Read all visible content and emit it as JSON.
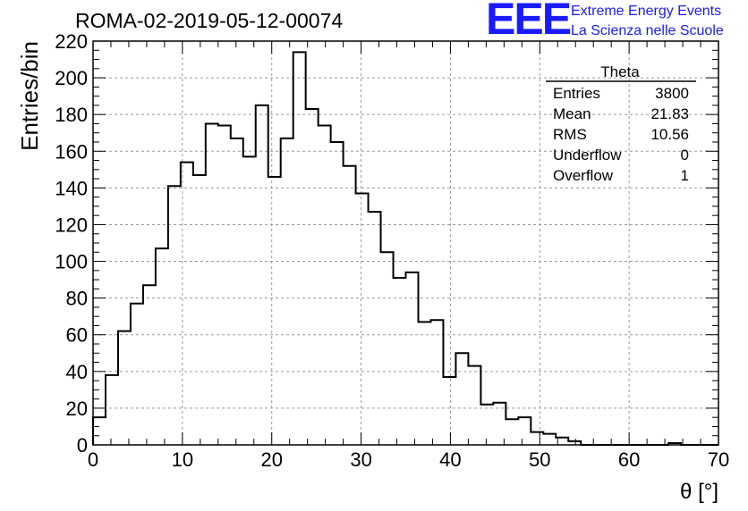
{
  "header": {
    "title": "ROMA-02-2019-05-12-00074",
    "logo_text": "EEE",
    "logo_line1": "Extreme Energy Events",
    "logo_line2": "La Scienza nelle Scuole",
    "logo_color": "#1a1aff"
  },
  "stats": {
    "name": "Theta",
    "rows": [
      {
        "label": "Entries",
        "value": "3800"
      },
      {
        "label": "Mean",
        "value": "21.83"
      },
      {
        "label": "RMS",
        "value": "10.56"
      },
      {
        "label": "Underflow",
        "value": "0"
      },
      {
        "label": "Overflow",
        "value": "1"
      }
    ]
  },
  "chart_data": {
    "type": "bar",
    "title": "ROMA-02-2019-05-12-00074",
    "xlabel": "θ [°]",
    "ylabel": "Entries/bin",
    "xlim": [
      0,
      70
    ],
    "ylim": [
      0,
      220
    ],
    "grid": true,
    "xticks": [
      0,
      10,
      20,
      30,
      40,
      50,
      60,
      70
    ],
    "yticks": [
      0,
      20,
      40,
      60,
      80,
      100,
      120,
      140,
      160,
      180,
      200,
      220
    ],
    "bin_width": 1.4,
    "values": [
      15,
      38,
      62,
      77,
      87,
      107,
      141,
      154,
      147,
      175,
      174,
      167,
      157,
      185,
      146,
      167,
      214,
      183,
      174,
      165,
      152,
      137,
      127,
      105,
      91,
      94,
      67,
      68,
      37,
      50,
      43,
      22,
      23,
      14,
      15,
      7,
      6,
      4,
      2,
      0,
      0,
      0,
      0,
      0,
      0,
      0,
      1,
      0,
      0,
      0
    ]
  }
}
